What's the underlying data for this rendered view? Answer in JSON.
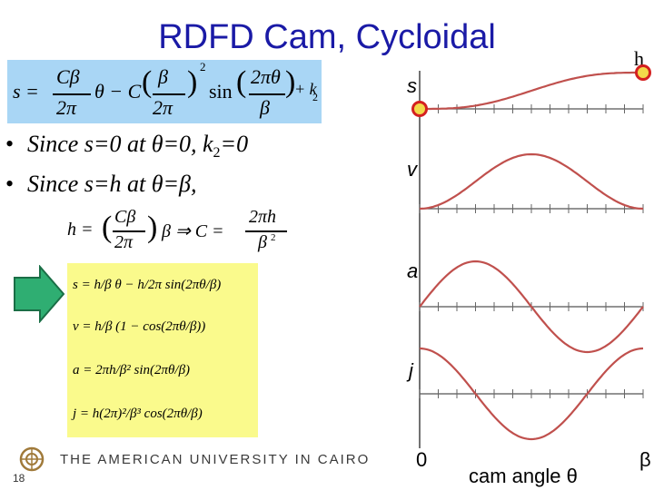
{
  "slide": {
    "title": "RDFD Cam, Cycloidal",
    "corner_label": "h",
    "slide_number": "18",
    "footer_text": "THE AMERICAN UNIVERSITY IN CAIRO"
  },
  "main_equation": {
    "s_eq": "s =",
    "frac1_num": "Cβ",
    "frac1_den": "2π",
    "theta_minus_C": "θ − C",
    "frac2_num": "β",
    "frac2_den": "2π",
    "exp2": "2",
    "sin": "sin",
    "frac3_num": "2πθ",
    "frac3_den": "β",
    "plus_k2": "+ k",
    "k_sub": "2"
  },
  "bullets": [
    {
      "text": "Since s=0 at θ=0, k",
      "sub": "2",
      "tail": "=0"
    },
    {
      "text": "Since s=h at θ=β,",
      "sub": "",
      "tail": ""
    }
  ],
  "mid_equation": {
    "h_eq": "h =",
    "frac_num": "Cβ",
    "frac_den": "2π",
    "beta_implies": "β ⇒ C =",
    "frac2_num": "2πh",
    "frac2_den": "β",
    "exp": "2"
  },
  "results": [
    {
      "lhs": "s =",
      "body": "h/β θ − h/2π sin(2πθ/β)"
    },
    {
      "lhs": "v =",
      "body": "h/β (1 − cos(2πθ/β))"
    },
    {
      "lhs": "a =",
      "body": "2πh/β² sin(2πθ/β)"
    },
    {
      "lhs": "j =",
      "body": "h(2π)²/β³ cos(2πθ/β)"
    }
  ],
  "plots": {
    "labels": [
      "s",
      "v",
      "a",
      "j"
    ],
    "x_start": "0",
    "x_end": "β",
    "x_label": "cam angle θ",
    "curve_color": "#c0504d",
    "marker_color": "#d42020"
  },
  "colors": {
    "title": "#1a1aa6",
    "eq_box": "#a9d6f5",
    "yellow_box": "#fafa8c",
    "arrow": "#2fae72"
  }
}
